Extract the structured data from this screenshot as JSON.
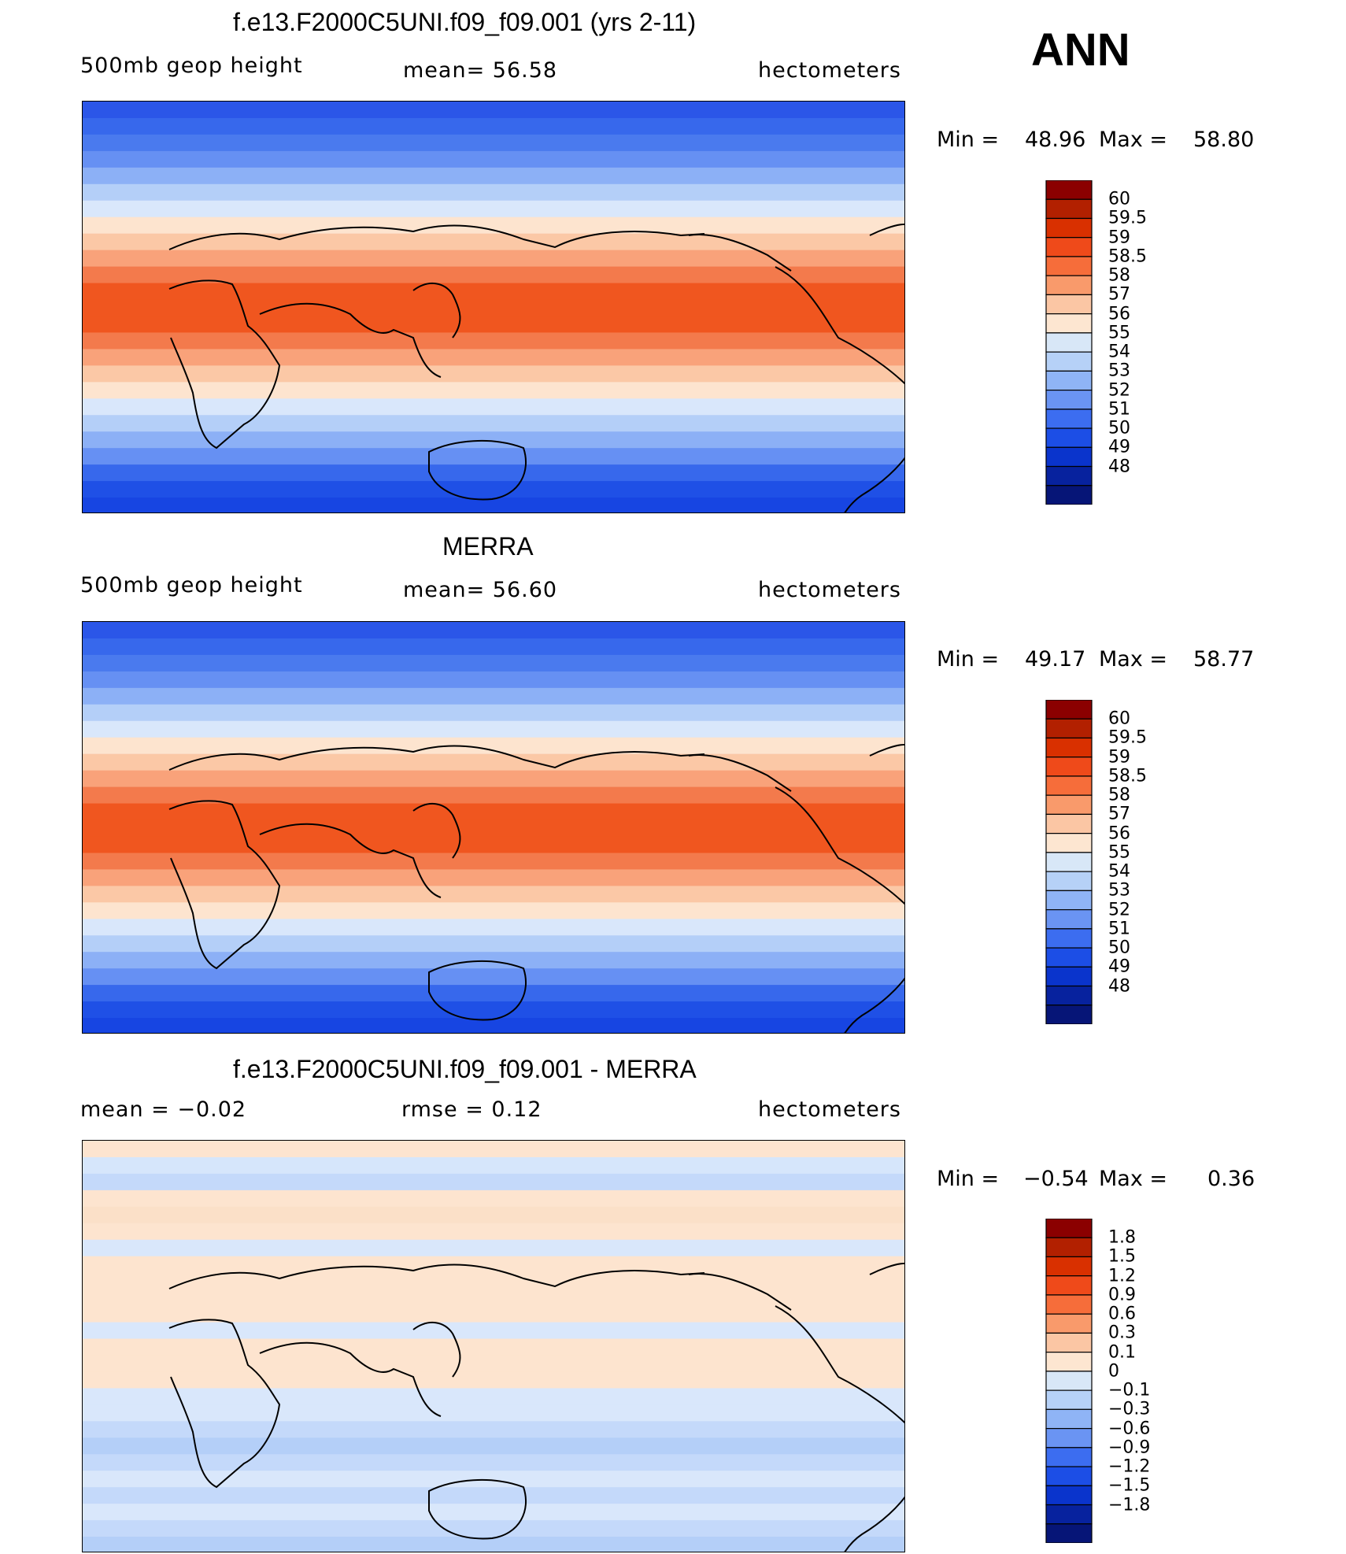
{
  "season": "ANN",
  "units": "hectometers",
  "panels": [
    {
      "title": "f.e13.F2000C5UNI.f09_f09.001 (yrs 2-11)",
      "left_label": "500mb  geop  height",
      "center_label": "mean=   56.58",
      "right_label": "hectometers",
      "min_label": "Min  =",
      "min_value": "48.96",
      "max_label": "Max  =",
      "max_value": "58.80",
      "colorbar": {
        "colors": [
          "#8b0000",
          "#b22000",
          "#d93000",
          "#ef4a1a",
          "#f66d3a",
          "#f99a6b",
          "#fbc6a4",
          "#fde6d1",
          "#d8e7f7",
          "#b6d1f7",
          "#8fb4f6",
          "#6a94f3",
          "#3c6df0",
          "#1c4ee6",
          "#0a34cc",
          "#07229e",
          "#061577"
        ],
        "labels": [
          "60",
          "59.5",
          "59",
          "58.5",
          "58",
          "57",
          "56",
          "55",
          "54",
          "53",
          "52",
          "51",
          "50",
          "49",
          "48"
        ]
      },
      "bands": [
        "#2b56e8",
        "#3768ec",
        "#4a7aee",
        "#6690f3",
        "#8cb0f6",
        "#b4cff8",
        "#d9e7fb",
        "#fde4cf",
        "#fbc8a6",
        "#f9a27a",
        "#f37a4c",
        "#f0561f",
        "#f0561f",
        "#f0561f",
        "#f37a4c",
        "#f9a27a",
        "#fbc8a6",
        "#fde4cf",
        "#d9e7fb",
        "#b4cff8",
        "#8cb0f6",
        "#6690f3",
        "#3768ec",
        "#1f50e6",
        "#1745e2"
      ]
    },
    {
      "title": "MERRA",
      "left_label": "500mb  geop  height",
      "center_label": "mean=   56.60",
      "right_label": "hectometers",
      "min_label": "Min  =",
      "min_value": "49.17",
      "max_label": "Max  =",
      "max_value": "58.77",
      "colorbar": {
        "colors": [
          "#8b0000",
          "#b22000",
          "#d93000",
          "#ef4a1a",
          "#f66d3a",
          "#f99a6b",
          "#fbc6a4",
          "#fde6d1",
          "#d8e7f7",
          "#b6d1f7",
          "#8fb4f6",
          "#6a94f3",
          "#3c6df0",
          "#1c4ee6",
          "#0a34cc",
          "#07229e",
          "#061577"
        ],
        "labels": [
          "60",
          "59.5",
          "59",
          "58.5",
          "58",
          "57",
          "56",
          "55",
          "54",
          "53",
          "52",
          "51",
          "50",
          "49",
          "48"
        ]
      },
      "bands": [
        "#2b56e8",
        "#3768ec",
        "#4a7aee",
        "#6690f3",
        "#8cb0f6",
        "#b4cff8",
        "#d9e7fb",
        "#fde4cf",
        "#fbc8a6",
        "#f9a27a",
        "#f37a4c",
        "#f0561f",
        "#f0561f",
        "#f0561f",
        "#f37a4c",
        "#f9a27a",
        "#fbc8a6",
        "#fde4cf",
        "#d9e7fb",
        "#b4cff8",
        "#8cb0f6",
        "#6690f3",
        "#3768ec",
        "#1f50e6",
        "#1745e2"
      ]
    },
    {
      "title": "f.e13.F2000C5UNI.f09_f09.001 - MERRA",
      "left_label": "mean  =    −0.02",
      "center_label": "rmse  =     0.12",
      "right_label": "hectometers",
      "min_label": "Min  =",
      "min_value": "−0.54",
      "max_label": "Max  =",
      "max_value": "0.36",
      "colorbar": {
        "colors": [
          "#8b0000",
          "#b22000",
          "#d93000",
          "#ef4a1a",
          "#f66d3a",
          "#f99a6b",
          "#fbc6a4",
          "#fde6d1",
          "#d8e7f7",
          "#b6d1f7",
          "#8fb4f6",
          "#6a94f3",
          "#3c6df0",
          "#1c4ee6",
          "#0a34cc",
          "#07229e",
          "#061577"
        ],
        "labels": [
          "1.8",
          "1.5",
          "1.2",
          "0.9",
          "0.6",
          "0.3",
          "0.1",
          "0",
          "−0.1",
          "−0.3",
          "−0.6",
          "−0.9",
          "−1.2",
          "−1.5",
          "−1.8"
        ]
      },
      "bands": [
        "#fde4cf",
        "#d6e6fb",
        "#c4d9fa",
        "#fde4cf",
        "#fbe0c8",
        "#fde4cf",
        "#d9e7fb",
        "#fde4cf",
        "#fde4cf",
        "#fde4cf",
        "#fde4cf",
        "#d9e7fb",
        "#fde4cf",
        "#fde4cf",
        "#fde4cf",
        "#d9e7fb",
        "#d9e7fb",
        "#c4d9fa",
        "#b4cff8",
        "#c4d9fa",
        "#d9e7fb",
        "#c4d9fa",
        "#d9e7fb",
        "#c4d9fa",
        "#b4cff8"
      ]
    }
  ]
}
